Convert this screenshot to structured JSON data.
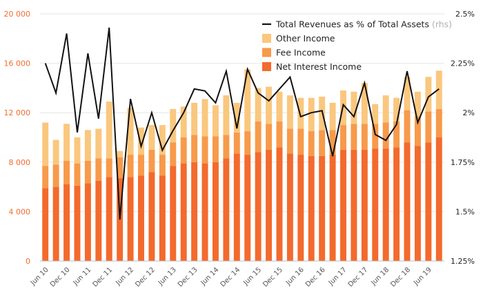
{
  "chart_data": {
    "type": "bar",
    "stacked": true,
    "colors": {
      "nii": "#f36a2d",
      "fee": "#f79a4a",
      "other": "#fac77e",
      "line": "#111111",
      "left_axis": "#f26b2f",
      "grid": "#e6e6e6"
    },
    "left_axis": {
      "ylim": [
        0,
        20000
      ],
      "ticks": [
        0,
        4000,
        8000,
        12000,
        16000,
        20000
      ],
      "tick_labels": [
        "0",
        "4 000",
        "8 000",
        "12 000",
        "16 000",
        "20 000"
      ]
    },
    "right_axis": {
      "ylim": [
        1.25,
        2.5
      ],
      "ticks": [
        1.25,
        1.5,
        1.75,
        2.0,
        2.25,
        2.5
      ],
      "tick_labels": [
        "1.25%",
        "1.5%",
        "1.75%",
        "2%",
        "2.25%",
        "2.5%"
      ]
    },
    "x_tick_labels": [
      {
        "index": 0,
        "label": "Jun 10"
      },
      {
        "index": 2,
        "label": "Dec 10"
      },
      {
        "index": 4,
        "label": "Jun 11"
      },
      {
        "index": 6,
        "label": "Dec 11"
      },
      {
        "index": 8,
        "label": "Jun 12"
      },
      {
        "index": 10,
        "label": "Dec 12"
      },
      {
        "index": 12,
        "label": "Jun 13"
      },
      {
        "index": 14,
        "label": "Dec 13"
      },
      {
        "index": 16,
        "label": "Jun 14"
      },
      {
        "index": 18,
        "label": "Dec 14"
      },
      {
        "index": 20,
        "label": "Jun 15"
      },
      {
        "index": 22,
        "label": "Dec 15"
      },
      {
        "index": 24,
        "label": "Jun 16"
      },
      {
        "index": 26,
        "label": "Dec 16"
      },
      {
        "index": 28,
        "label": "Jun 17"
      },
      {
        "index": 30,
        "label": "Dec 17"
      },
      {
        "index": 32,
        "label": "Jun 18"
      },
      {
        "index": 34,
        "label": "Dec 18"
      },
      {
        "index": 36,
        "label": "Jun 19"
      }
    ],
    "legend": [
      {
        "key": "line",
        "label": "Total Revenues as % of Total Assets",
        "suffix": "(rhs)"
      },
      {
        "key": "other",
        "label": "Other Income"
      },
      {
        "key": "fee",
        "label": "Fee Income"
      },
      {
        "key": "nii",
        "label": "Net Interest Income"
      }
    ],
    "series": [
      {
        "name": "Net Interest Income",
        "key": "nii",
        "values": [
          5900,
          6000,
          6200,
          6100,
          6300,
          6500,
          6800,
          6700,
          6800,
          6900,
          7200,
          6900,
          7700,
          7900,
          8000,
          7900,
          8000,
          8300,
          8700,
          8600,
          8800,
          9000,
          9200,
          8700,
          8600,
          8500,
          8500,
          8600,
          9000,
          9000,
          9000,
          9100,
          9100,
          9200,
          9600,
          9300,
          9600,
          10000
        ]
      },
      {
        "name": "Fee Income",
        "key": "fee",
        "values": [
          1800,
          1800,
          1900,
          1800,
          1800,
          1800,
          1500,
          1700,
          1800,
          1700,
          1800,
          1700,
          1900,
          2100,
          2200,
          2200,
          2100,
          1900,
          1700,
          1900,
          2500,
          2100,
          2100,
          2000,
          2100,
          2000,
          2100,
          2000,
          2000,
          2100,
          2100,
          2000,
          2100,
          2100,
          2600,
          2400,
          2500,
          2300
        ]
      },
      {
        "name": "Other Income",
        "key": "other",
        "values": [
          3500,
          2000,
          3000,
          2100,
          2500,
          2400,
          4600,
          500,
          3800,
          2200,
          2000,
          2400,
          2700,
          2500,
          2600,
          3000,
          2500,
          3200,
          2400,
          5000,
          2700,
          3000,
          2400,
          2700,
          2500,
          2700,
          2700,
          2200,
          2800,
          2600,
          3300,
          1600,
          2200,
          1900,
          2700,
          2000,
          2800,
          3100
        ]
      },
      {
        "name": "Total Revenues as % of Total Assets",
        "key": "line",
        "axis": "right",
        "values": [
          2.25,
          2.1,
          2.4,
          1.9,
          2.3,
          1.97,
          2.43,
          1.46,
          2.07,
          1.83,
          2.0,
          1.81,
          1.91,
          2.0,
          2.12,
          2.11,
          2.05,
          2.21,
          1.92,
          2.22,
          2.1,
          2.06,
          2.12,
          2.18,
          1.98,
          2.0,
          2.01,
          1.78,
          2.04,
          1.98,
          2.15,
          1.89,
          1.86,
          1.94,
          2.21,
          1.95,
          2.08,
          2.12
        ]
      }
    ]
  }
}
